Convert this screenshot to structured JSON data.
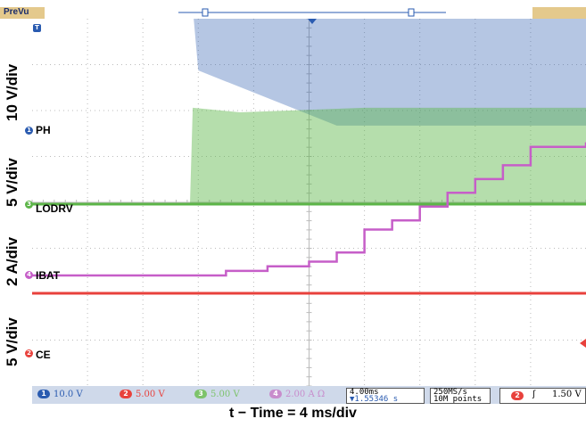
{
  "chart_data": {
    "type": "line",
    "title": "",
    "xlabel": "t − Time = 4 ms/div",
    "x_unit": "ms",
    "xlim": [
      -4,
      36
    ],
    "grid": true,
    "series": [
      {
        "name": "PH",
        "ylabel": "10 V/div",
        "color": "#2a5bb0",
        "x": [
          -4,
          7.5,
          8.0,
          18.0,
          36.0
        ],
        "y_divisions_above_marker": [
          3.0,
          3.0,
          4.2,
          4.2,
          4.2
        ],
        "envelope_low_divisions": [
          3.0,
          3.0,
          1.3,
          0.1,
          0.1
        ]
      },
      {
        "name": "LODRV",
        "ylabel": "5 V/div",
        "color": "#5cb548",
        "x": [
          -4,
          7.4,
          7.6,
          11.0,
          20.0,
          36.0
        ],
        "y_divisions_above_marker": [
          0,
          0,
          0,
          0,
          0,
          0
        ],
        "envelope_high_divisions": [
          0,
          0,
          2.1,
          2.0,
          2.1,
          2.1
        ]
      },
      {
        "name": "IBAT",
        "ylabel": "2 A/div",
        "color": "#c65ec8",
        "x": [
          -4,
          6,
          10,
          13,
          16,
          18,
          20,
          22,
          24,
          26,
          28,
          30,
          32,
          36
        ],
        "y_divisions_above_marker": [
          0,
          0,
          0.1,
          0.2,
          0.3,
          0.5,
          1.0,
          1.2,
          1.5,
          1.8,
          2.1,
          2.4,
          2.8,
          2.9
        ]
      },
      {
        "name": "CE",
        "ylabel": "5 V/div",
        "color": "#e8413c",
        "x": [
          -4,
          36
        ],
        "y_divisions_above_marker": [
          1.3,
          1.3
        ]
      }
    ]
  },
  "header": {
    "mode_label": "PreVu"
  },
  "channel_labels": {
    "ch1": "PH",
    "ch3": "LODRV",
    "ch4": "IBAT",
    "ch2": "CE"
  },
  "markers": {
    "ch1": "1",
    "ch2": "2",
    "ch3": "3",
    "ch4": "4",
    "trigger": "T"
  },
  "y_axis_labels": {
    "ph": "10 V/div",
    "lodrv": "5 V/div",
    "ibat": "2 A/div",
    "ce": "5 V/div"
  },
  "status": {
    "ch1_scale": "10.0 V",
    "ch2_scale": "5.00 V",
    "ch3_scale": "5.00 V",
    "ch4_scale": "2.00 A Ω",
    "timebase": "4.00ms",
    "trigger_position": "▼1.55346 s",
    "sample_rate": "250MS/s",
    "record_length": "10M points",
    "trigger_channel": "2",
    "trigger_slope": "ʃ",
    "trigger_level": "1.50 V"
  },
  "colors": {
    "ch1": "#2a5bb0",
    "ch2": "#e8413c",
    "ch3": "#5cb548",
    "ch4": "#c65ec8",
    "grid": "#bbbbbb",
    "statusbar": "#cfd9ea",
    "header_box": "#e4c98c"
  }
}
